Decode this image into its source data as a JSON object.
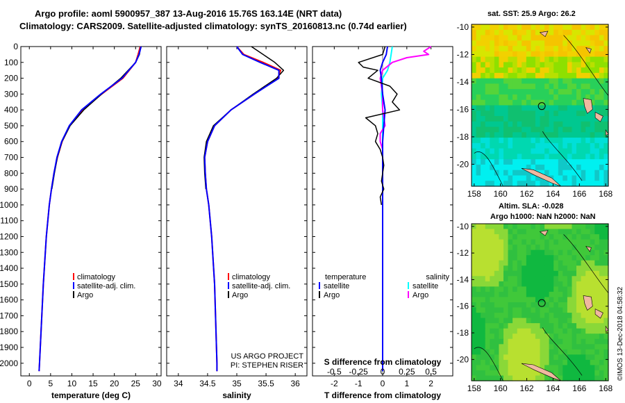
{
  "titles": {
    "line1": "Argo profile: aoml 5900957_387 13-Aug-2016 15.76S 163.14E (NRT data)",
    "line2": "Climatology: CARS2009. Satellite-adjusted climatology: synTS_20160813.nc (0.74d earlier)"
  },
  "map_top": {
    "title": "sat. SST: 25.9 Argo: 26.2"
  },
  "map_bottom": {
    "title1": "Altim. SLA: -0.028",
    "title2": "Argo h1000: NaN h2000: NaN"
  },
  "credit": {
    "line1": "US ARGO PROJECT",
    "line2": "PI: STEPHEN RISER"
  },
  "stamp": "©IMOS 13-Dec-2018 04:58:32",
  "colors": {
    "climatology": "#ff0000",
    "satellite": "#0000ff",
    "argo": "#000000",
    "sal_satellite": "#00ffff",
    "sal_argo": "#ff00ff",
    "map_land": "#f0b8a0"
  },
  "legend_profiles": [
    "climatology",
    "satellite-adj. clim.",
    "Argo"
  ],
  "legend_diff": {
    "temperature_head": "temperature",
    "salinity_head": "salinity",
    "satellite": "satellite",
    "argo": "Argo"
  },
  "chart_data": [
    {
      "type": "line",
      "name": "temperature_profile",
      "xlabel": "temperature (deg C)",
      "xlim": [
        -2,
        31
      ],
      "ylim": [
        2080,
        0
      ],
      "xticks": [
        0,
        5,
        10,
        15,
        20,
        25,
        30
      ],
      "yticks": [
        0,
        100,
        200,
        300,
        400,
        500,
        600,
        700,
        800,
        900,
        1000,
        1100,
        1200,
        1300,
        1400,
        1500,
        1600,
        1700,
        1800,
        1900,
        2000
      ],
      "series": [
        {
          "name": "climatology",
          "depth": [
            0,
            50,
            100,
            200,
            300,
            400,
            500,
            600,
            700,
            800,
            900,
            1000,
            1200,
            1500,
            2000,
            2050
          ],
          "values": [
            26.1,
            25.6,
            25.0,
            22.0,
            17.0,
            12.5,
            9.5,
            7.7,
            6.6,
            5.8,
            5.2,
            4.7,
            4.0,
            3.3,
            2.4,
            2.3
          ]
        },
        {
          "name": "satellite-adj. clim.",
          "depth": [
            0,
            50,
            100,
            200,
            300,
            400,
            500,
            600,
            700,
            800,
            900,
            1000,
            1200,
            1500,
            2000,
            2050
          ],
          "values": [
            26.3,
            25.8,
            25.0,
            21.8,
            16.8,
            12.3,
            9.4,
            7.6,
            6.5,
            5.8,
            5.2,
            4.7,
            4.0,
            3.3,
            2.4,
            2.3
          ]
        },
        {
          "name": "Argo",
          "depth": [
            0,
            50,
            100,
            200,
            300,
            400,
            500,
            600,
            700,
            800,
            900
          ],
          "values": [
            26.2,
            25.9,
            25.0,
            21.5,
            17.0,
            12.8,
            9.6,
            7.7,
            6.6,
            5.9,
            5.3
          ]
        }
      ]
    },
    {
      "type": "line",
      "name": "salinity_profile",
      "xlabel": "salinity",
      "xlim": [
        33.8,
        36.2
      ],
      "ylim": [
        2080,
        0
      ],
      "xticks": [
        34,
        34.5,
        35,
        35.5,
        36
      ],
      "series": [
        {
          "name": "climatology",
          "depth": [
            0,
            50,
            100,
            150,
            200,
            300,
            400,
            500,
            600,
            700,
            800,
            900,
            1000,
            1200,
            1500,
            2000,
            2050
          ],
          "values": [
            35.0,
            35.12,
            35.45,
            35.75,
            35.7,
            35.3,
            34.9,
            34.62,
            34.5,
            34.45,
            34.46,
            34.48,
            34.52,
            34.57,
            34.62,
            34.66,
            34.66
          ]
        },
        {
          "name": "satellite-adj. clim.",
          "depth": [
            0,
            50,
            100,
            150,
            200,
            300,
            400,
            500,
            600,
            700,
            800,
            900,
            1000,
            1200,
            1500,
            2000,
            2050
          ],
          "values": [
            35.0,
            35.1,
            35.4,
            35.72,
            35.72,
            35.3,
            34.9,
            34.62,
            34.5,
            34.45,
            34.46,
            34.48,
            34.52,
            34.57,
            34.62,
            34.66,
            34.66
          ]
        },
        {
          "name": "Argo",
          "depth": [
            0,
            50,
            100,
            150,
            200,
            300,
            400,
            500,
            600,
            700,
            800,
            900
          ],
          "values": [
            35.25,
            35.45,
            35.65,
            35.8,
            35.68,
            35.28,
            34.9,
            34.6,
            34.48,
            34.44,
            34.45,
            34.47
          ]
        }
      ]
    },
    {
      "type": "line",
      "name": "difference_profile",
      "xlabel": "T difference from climatology",
      "top_label": "S difference from climatology",
      "xlim": [
        -2.9,
        2.9
      ],
      "ylim": [
        2080,
        0
      ],
      "xticks": [
        -2,
        -1,
        0,
        1,
        2
      ],
      "top_ticks": [
        "-0.5",
        "-0.25",
        "0",
        "0.25",
        "0.5"
      ],
      "top_tick_positions": [
        -2,
        -1,
        0,
        1,
        2
      ],
      "series": [
        {
          "name": "temperature Argo",
          "depth": [
            0,
            50,
            100,
            130,
            150,
            200,
            250,
            300,
            350,
            400,
            450,
            500,
            550,
            600,
            650,
            700,
            750,
            800,
            850,
            900,
            950,
            1000
          ],
          "values": [
            0.1,
            0.0,
            -1.0,
            -0.8,
            -0.2,
            -0.6,
            0.3,
            0.6,
            0.4,
            0.7,
            -0.7,
            -0.3,
            -0.2,
            -0.3,
            -0.1,
            0.0,
            0.05,
            0.0,
            -0.05,
            0.05,
            -0.1,
            -0.05
          ]
        },
        {
          "name": "temperature satellite",
          "depth": [
            0,
            50,
            100,
            150,
            200,
            300,
            400,
            500,
            600,
            700,
            800,
            900,
            1000,
            1500,
            2050
          ],
          "values": [
            0.2,
            0.15,
            0.0,
            -0.1,
            -0.05,
            0.0,
            0.1,
            0.05,
            0.0,
            0.0,
            0.0,
            0.0,
            0.0,
            0.0,
            0.0
          ]
        },
        {
          "name": "salinity Argo",
          "depth": [
            0,
            30,
            50,
            70,
            100,
            150,
            200,
            300,
            400,
            500,
            550,
            600,
            650,
            700,
            750,
            800
          ],
          "values": [
            2.0,
            1.7,
            1.9,
            1.0,
            0.4,
            0.0,
            -0.1,
            0.0,
            0.0,
            0.1,
            -0.1,
            -0.1,
            0.0,
            0.0,
            0.0,
            0.0
          ]
        },
        {
          "name": "salinity satellite",
          "depth": [
            0,
            50,
            100,
            150,
            200,
            300,
            400,
            500,
            600,
            700,
            800,
            900,
            1000,
            1500,
            2050
          ],
          "values": [
            0.4,
            0.35,
            0.3,
            0.2,
            0.0,
            -0.05,
            0.0,
            0.0,
            0.0,
            0.0,
            0.0,
            0.0,
            0.0,
            0.0,
            0.0
          ]
        }
      ]
    },
    {
      "type": "heatmap",
      "name": "sst_map",
      "xticks": [
        158,
        160,
        162,
        164,
        166,
        168
      ],
      "yticks": [
        -10,
        -12,
        -14,
        -16,
        -18,
        -20
      ],
      "xlim": [
        157.8,
        168.2
      ],
      "ylim": [
        -21.6,
        -9.8
      ],
      "marker": [
        163.14,
        -15.76
      ]
    },
    {
      "type": "heatmap",
      "name": "sla_map",
      "xticks": [
        158,
        160,
        162,
        164,
        166,
        168
      ],
      "yticks": [
        -10,
        -12,
        -14,
        -16,
        -18,
        -20
      ],
      "xlim": [
        157.8,
        168.2
      ],
      "ylim": [
        -21.6,
        -9.8
      ],
      "marker": [
        163.14,
        -15.76
      ]
    }
  ]
}
